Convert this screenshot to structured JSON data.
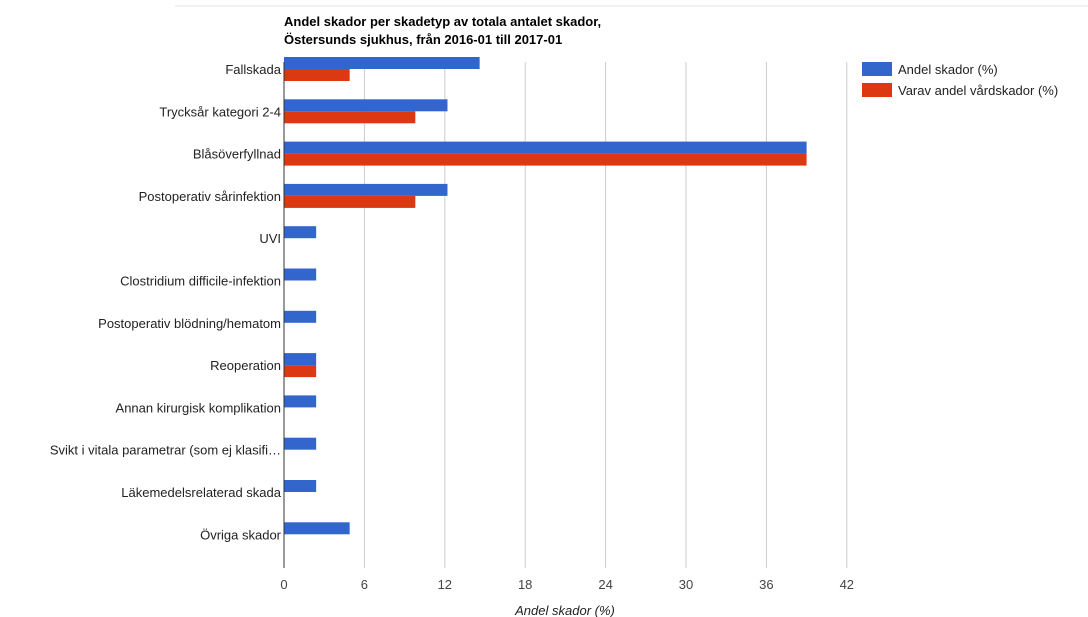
{
  "chart_data": {
    "type": "bar",
    "orientation": "horizontal",
    "title": "Andel skador per skadetyp av totala antalet skador,",
    "subtitle": "Östersunds sjukhus, från 2016-01 till 2017-01",
    "xlabel": "Andel skador (%)",
    "ylabel": "",
    "xlim": [
      0,
      42
    ],
    "x_ticks": [
      0,
      6,
      12,
      18,
      24,
      30,
      36,
      42
    ],
    "grid": true,
    "legend_position": "top-right",
    "categories": [
      "Fallskada",
      "Trycksår kategori 2-4",
      "Blåsöverfyllnad",
      "Postoperativ sårinfektion",
      "UVI",
      "Clostridium difficile-infektion",
      "Postoperativ blödning/hematom",
      "Reoperation",
      "Annan kirurgisk komplikation",
      "Svikt i vitala parametrar (som ej klasifi…",
      "Läkemedelsrelaterad skada",
      "Övriga skador"
    ],
    "series": [
      {
        "name": "Andel skador (%)",
        "color": "#3366cc",
        "values": [
          14.6,
          12.2,
          39.0,
          12.2,
          2.4,
          2.4,
          2.4,
          2.4,
          2.4,
          2.4,
          2.4,
          4.9
        ]
      },
      {
        "name": "Varav andel vårdskador (%)",
        "color": "#dc3912",
        "values": [
          4.9,
          9.8,
          39.0,
          9.8,
          0,
          0,
          0,
          2.4,
          0,
          0,
          0,
          0
        ]
      }
    ]
  }
}
